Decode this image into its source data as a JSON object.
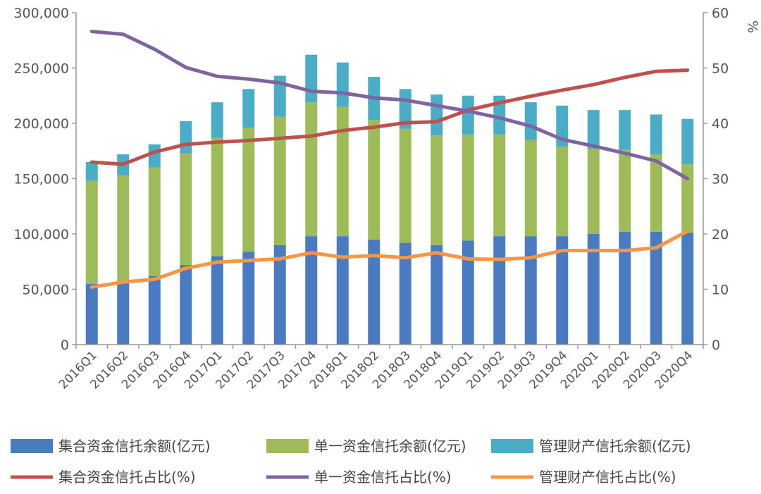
{
  "chart_data": {
    "type": "bar",
    "categories": [
      "2016Q1",
      "2016Q2",
      "2016Q3",
      "2016Q4",
      "2017Q1",
      "2017Q2",
      "2017Q3",
      "2017Q4",
      "2018Q1",
      "2018Q2",
      "2018Q3",
      "2018Q4",
      "2019Q1",
      "2019Q2",
      "2019Q3",
      "2019Q4",
      "2020Q1",
      "2020Q2",
      "2020Q3",
      "2020Q4"
    ],
    "stacked": true,
    "bar_series": [
      {
        "name": "集合资金信托余额(亿元)",
        "color": "#4a7bc0",
        "values": [
          55000,
          57000,
          62000,
          72000,
          80000,
          84000,
          90000,
          98000,
          98000,
          95000,
          92000,
          90000,
          94000,
          98000,
          98000,
          98000,
          100000,
          102000,
          102000,
          101000
        ]
      },
      {
        "name": "单一资金信托余额(亿元)",
        "color": "#9dbb59",
        "values": [
          93000,
          96000,
          98000,
          101000,
          107000,
          112000,
          116000,
          121000,
          117000,
          108000,
          103000,
          99000,
          96000,
          92000,
          87000,
          81000,
          77000,
          74000,
          70000,
          62000
        ]
      },
      {
        "name": "管理财产信托余额(亿元)",
        "color": "#4bacc6",
        "values": [
          17000,
          19000,
          21000,
          29000,
          32000,
          35000,
          37000,
          43000,
          40000,
          39000,
          36000,
          37000,
          35000,
          35000,
          34000,
          37000,
          35000,
          36000,
          36000,
          41000
        ]
      }
    ],
    "line_series": [
      {
        "name": "集合资金信托占比(%)",
        "color": "#c0504d",
        "values": [
          33.0,
          32.6,
          34.8,
          36.2,
          36.6,
          36.9,
          37.3,
          37.7,
          38.7,
          39.3,
          40.1,
          40.3,
          42.4,
          43.7,
          44.9,
          46.0,
          47.0,
          48.3,
          49.4,
          49.6
        ]
      },
      {
        "name": "单一资金信托占比(%)",
        "color": "#8064a2",
        "values": [
          56.6,
          56.1,
          53.4,
          50.1,
          48.5,
          48.0,
          47.3,
          45.8,
          45.5,
          44.6,
          44.2,
          43.2,
          42.2,
          41.0,
          39.5,
          37.1,
          35.9,
          34.6,
          33.2,
          30.0
        ]
      },
      {
        "name": "管理财产信托占比(%)",
        "color": "#f79646",
        "values": [
          10.4,
          11.3,
          11.8,
          13.8,
          14.9,
          15.2,
          15.5,
          16.6,
          15.8,
          16.1,
          15.7,
          16.6,
          15.5,
          15.4,
          15.7,
          17.0,
          17.0,
          17.0,
          17.5,
          20.5
        ]
      }
    ],
    "y_left": {
      "min": 0,
      "max": 300000,
      "ticks": [
        "0",
        "50,000",
        "100,000",
        "150,000",
        "200,000",
        "250,000",
        "300,000"
      ]
    },
    "y_right": {
      "min": 0,
      "max": 60,
      "ticks": [
        "0",
        "10",
        "20",
        "30",
        "40",
        "50",
        "60"
      ],
      "unit": "%"
    },
    "grid": false,
    "legend_placement": "bottom"
  }
}
